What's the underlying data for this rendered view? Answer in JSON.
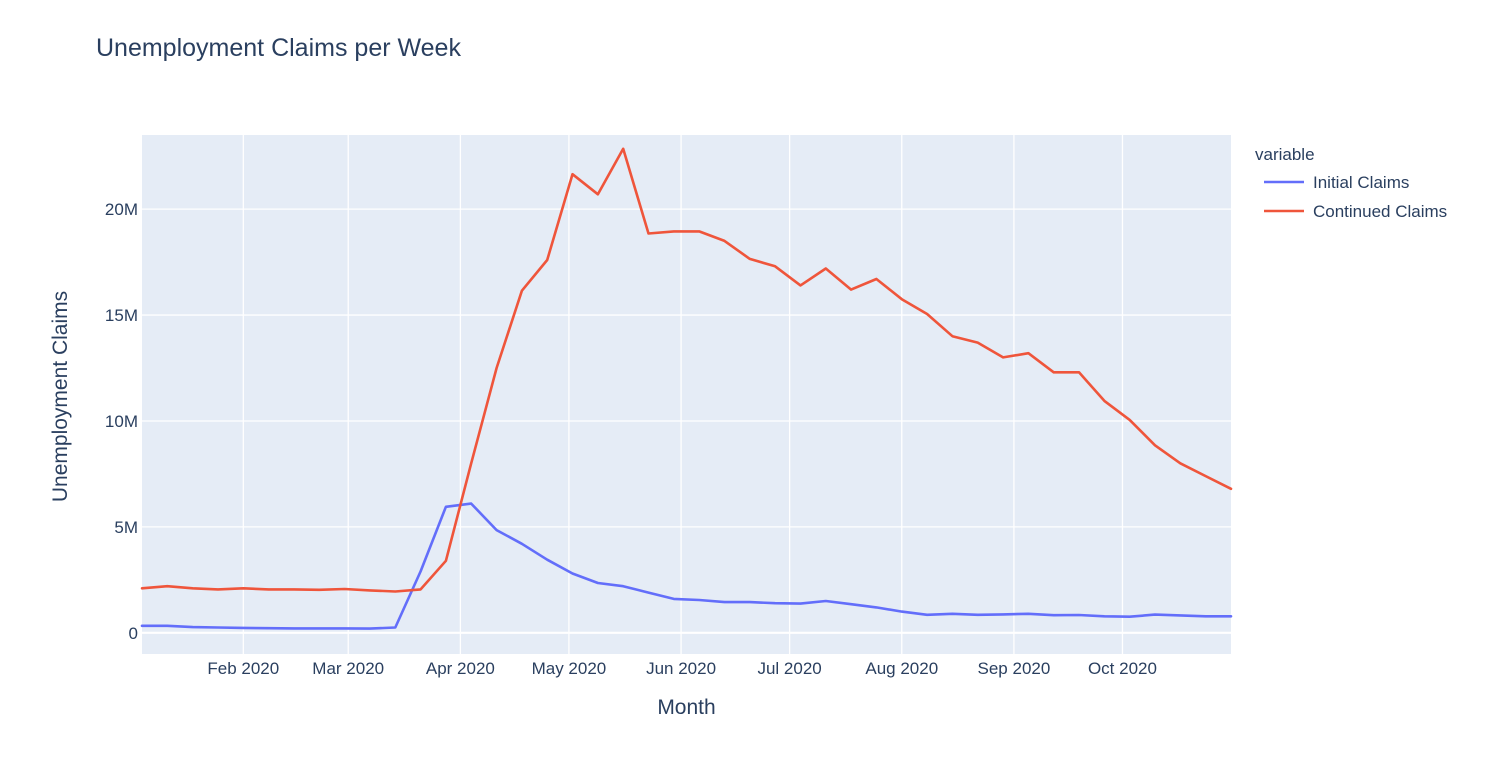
{
  "chart_data": {
    "type": "line",
    "title": "Unemployment Claims per Week",
    "xlabel": "Month",
    "ylabel": "Unemployment Claims",
    "legend": {
      "title": "variable",
      "position": "top-right"
    },
    "grid": true,
    "background": "#e5ecf6",
    "xlim": [
      "2020-01-04",
      "2020-10-31"
    ],
    "ylim": [
      -1000000,
      23500000
    ],
    "x_ticks": [
      {
        "date": "2020-02-01",
        "label": "Feb 2020"
      },
      {
        "date": "2020-03-01",
        "label": "Mar 2020"
      },
      {
        "date": "2020-04-01",
        "label": "Apr 2020"
      },
      {
        "date": "2020-05-01",
        "label": "May 2020"
      },
      {
        "date": "2020-06-01",
        "label": "Jun 2020"
      },
      {
        "date": "2020-07-01",
        "label": "Jul 2020"
      },
      {
        "date": "2020-08-01",
        "label": "Aug 2020"
      },
      {
        "date": "2020-09-01",
        "label": "Sep 2020"
      },
      {
        "date": "2020-10-01",
        "label": "Oct 2020"
      }
    ],
    "y_ticks": [
      {
        "value": 0,
        "label": "0"
      },
      {
        "value": 5000000,
        "label": "5M"
      },
      {
        "value": 10000000,
        "label": "10M"
      },
      {
        "value": 15000000,
        "label": "15M"
      },
      {
        "value": 20000000,
        "label": "20M"
      }
    ],
    "x": [
      "2020-01-04",
      "2020-01-11",
      "2020-01-18",
      "2020-01-25",
      "2020-02-01",
      "2020-02-08",
      "2020-02-15",
      "2020-02-22",
      "2020-02-29",
      "2020-03-07",
      "2020-03-14",
      "2020-03-21",
      "2020-03-28",
      "2020-04-04",
      "2020-04-11",
      "2020-04-18",
      "2020-04-25",
      "2020-05-02",
      "2020-05-09",
      "2020-05-16",
      "2020-05-23",
      "2020-05-30",
      "2020-06-06",
      "2020-06-13",
      "2020-06-20",
      "2020-06-27",
      "2020-07-04",
      "2020-07-11",
      "2020-07-18",
      "2020-07-25",
      "2020-08-01",
      "2020-08-08",
      "2020-08-15",
      "2020-08-22",
      "2020-08-29",
      "2020-09-05",
      "2020-09-12",
      "2020-09-19",
      "2020-09-26",
      "2020-10-03",
      "2020-10-10",
      "2020-10-17",
      "2020-10-24",
      "2020-10-31"
    ],
    "series": [
      {
        "name": "Initial Claims",
        "color": "#636efa",
        "values": [
          330000,
          330000,
          270000,
          250000,
          230000,
          220000,
          210000,
          210000,
          210000,
          200000,
          250000,
          2900000,
          5950000,
          6100000,
          4850000,
          4200000,
          3450000,
          2800000,
          2350000,
          2200000,
          1900000,
          1600000,
          1550000,
          1450000,
          1450000,
          1400000,
          1380000,
          1500000,
          1350000,
          1200000,
          1000000,
          850000,
          900000,
          850000,
          870000,
          900000,
          830000,
          840000,
          780000,
          760000,
          860000,
          820000,
          780000,
          780000
        ]
      },
      {
        "name": "Continued Claims",
        "color": "#ef553b",
        "values": [
          2100000,
          2200000,
          2100000,
          2050000,
          2100000,
          2050000,
          2050000,
          2030000,
          2070000,
          2000000,
          1950000,
          2050000,
          3400000,
          8000000,
          12500000,
          16150000,
          17600000,
          21650000,
          20700000,
          22850000,
          18850000,
          18950000,
          18950000,
          18500000,
          17650000,
          17300000,
          16400000,
          17200000,
          16200000,
          16700000,
          15750000,
          15050000,
          14000000,
          13700000,
          13000000,
          13200000,
          12300000,
          12300000,
          10950000,
          10050000,
          8850000,
          8000000,
          7400000,
          6800000
        ]
      }
    ]
  }
}
